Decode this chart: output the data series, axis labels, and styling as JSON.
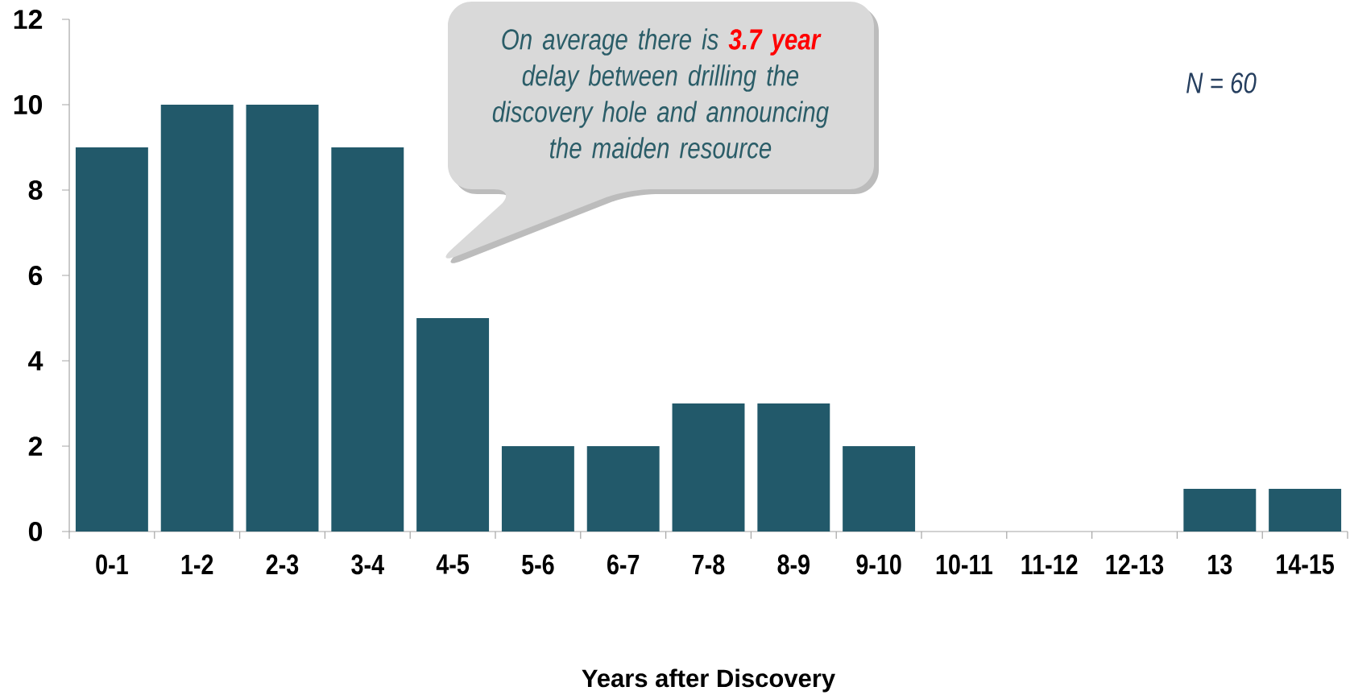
{
  "chart_data": {
    "type": "bar",
    "categories": [
      "0-1",
      "1-2",
      "2-3",
      "3-4",
      "4-5",
      "5-6",
      "6-7",
      "7-8",
      "8-9",
      "9-10",
      "10-11",
      "11-12",
      "12-13",
      "13",
      "14-15"
    ],
    "values": [
      9,
      10,
      10,
      9,
      5,
      2,
      2,
      3,
      3,
      2,
      0,
      0,
      0,
      1,
      1
    ],
    "color": "#22596a",
    "ylim": [
      0,
      12
    ],
    "yticks": [
      0,
      2,
      4,
      6,
      8,
      10,
      12
    ],
    "xlabel": "Years after Discovery",
    "annotations": [
      "On average there is **3.7 year** delay between drilling the discovery hole and announcing the maiden resource",
      "N = 60"
    ]
  }
}
